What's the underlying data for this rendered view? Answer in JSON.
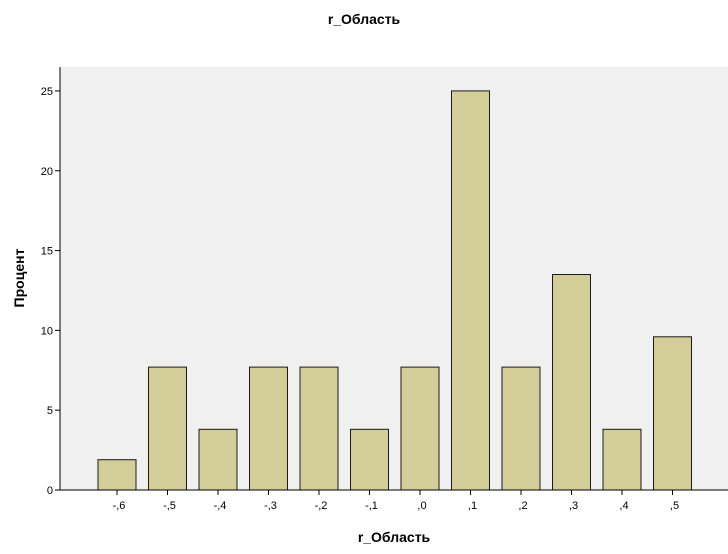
{
  "chart_data": {
    "type": "bar",
    "title": "r_Область",
    "xlabel": "r_Область",
    "ylabel": "Процент",
    "categories": [
      "-,6",
      "-,5",
      "-,4",
      "-,3",
      "-,2",
      "-,1",
      ",0",
      ",1",
      ",2",
      ",3",
      ",4",
      ",5"
    ],
    "values": [
      1.9,
      7.7,
      3.8,
      7.7,
      7.7,
      3.8,
      7.7,
      25.0,
      7.7,
      13.5,
      3.8,
      9.6
    ],
    "ylim": [
      0,
      26.5
    ],
    "yticks": [
      0,
      5,
      10,
      15,
      20,
      25
    ],
    "grid": false,
    "colors": {
      "bar_fill": "#d3ce99",
      "bar_stroke": "#1a1a1a",
      "plot_background": "#f0f0f0",
      "axis": "#000000"
    }
  }
}
